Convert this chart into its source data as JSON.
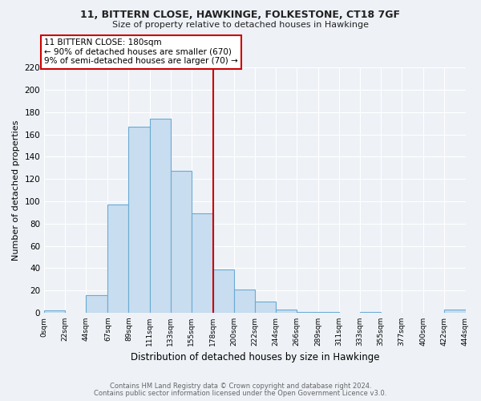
{
  "title1": "11, BITTERN CLOSE, HAWKINGE, FOLKESTONE, CT18 7GF",
  "title2": "Size of property relative to detached houses in Hawkinge",
  "xlabel": "Distribution of detached houses by size in Hawkinge",
  "ylabel": "Number of detached properties",
  "bar_color": "#c8ddef",
  "bar_edge_color": "#6aaad4",
  "bin_edges": [
    0,
    22,
    44,
    67,
    89,
    111,
    133,
    155,
    178,
    200,
    222,
    244,
    266,
    289,
    311,
    333,
    355,
    377,
    400,
    422,
    444
  ],
  "bin_labels": [
    "0sqm",
    "22sqm",
    "44sqm",
    "67sqm",
    "89sqm",
    "111sqm",
    "133sqm",
    "155sqm",
    "178sqm",
    "200sqm",
    "222sqm",
    "244sqm",
    "266sqm",
    "289sqm",
    "311sqm",
    "333sqm",
    "355sqm",
    "377sqm",
    "400sqm",
    "422sqm",
    "444sqm"
  ],
  "counts": [
    2,
    0,
    16,
    97,
    167,
    174,
    127,
    89,
    39,
    21,
    10,
    3,
    1,
    1,
    0,
    1,
    0,
    0,
    0,
    3
  ],
  "vline_x": 178,
  "vline_color": "#cc0000",
  "annotation_title": "11 BITTERN CLOSE: 180sqm",
  "annotation_line1": "← 90% of detached houses are smaller (670)",
  "annotation_line2": "9% of semi-detached houses are larger (70) →",
  "annotation_box_color": "#ffffff",
  "annotation_box_edge": "#cc0000",
  "ylim": [
    0,
    220
  ],
  "yticks": [
    0,
    20,
    40,
    60,
    80,
    100,
    120,
    140,
    160,
    180,
    200,
    220
  ],
  "footer1": "Contains HM Land Registry data © Crown copyright and database right 2024.",
  "footer2": "Contains public sector information licensed under the Open Government Licence v3.0.",
  "bg_color": "#eef2f7",
  "plot_bg_color": "#eef2f7",
  "grid_color": "#ffffff"
}
